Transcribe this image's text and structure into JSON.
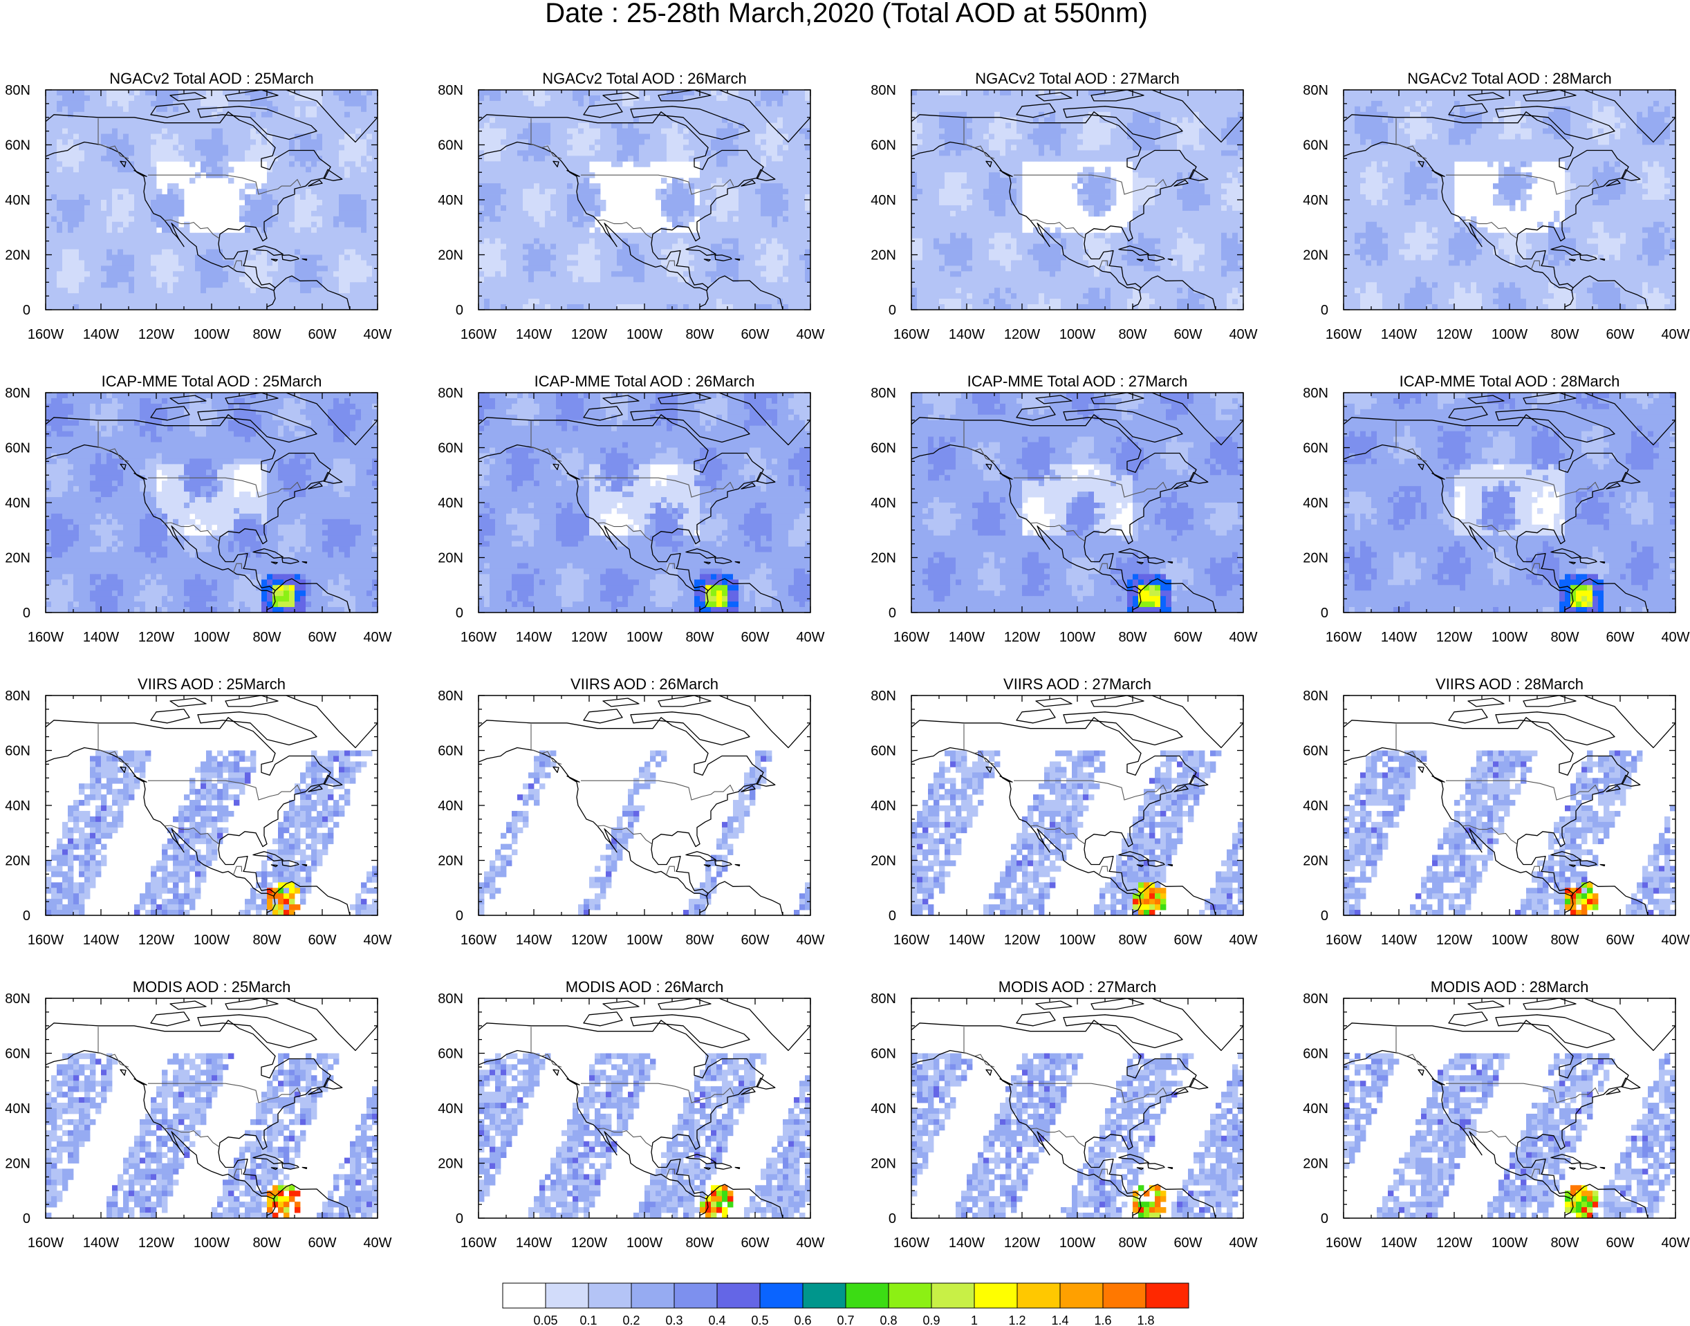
{
  "figure": {
    "title": "Date : 25-28th March,2020 (Total AOD at 550nm)"
  },
  "axes": {
    "lat_ticks": [
      "80N",
      "60N",
      "40N",
      "20N",
      "0"
    ],
    "lon_ticks": [
      "160W",
      "140W",
      "120W",
      "100W",
      "80W",
      "60W",
      "40W"
    ]
  },
  "panels": [
    {
      "row": 0,
      "col": 0,
      "title": "NGACv2 Total AOD : 25March",
      "style": "model",
      "base_level": 2,
      "hotspot": 0
    },
    {
      "row": 0,
      "col": 1,
      "title": "NGACv2 Total AOD : 26March",
      "style": "model",
      "base_level": 2,
      "hotspot": 0
    },
    {
      "row": 0,
      "col": 2,
      "title": "NGACv2 Total AOD : 27March",
      "style": "model",
      "base_level": 2,
      "hotspot": 0
    },
    {
      "row": 0,
      "col": 3,
      "title": "NGACv2 Total AOD : 28March",
      "style": "model",
      "base_level": 2,
      "hotspot": 0
    },
    {
      "row": 1,
      "col": 0,
      "title": "ICAP-MME Total AOD : 25March",
      "style": "model",
      "base_level": 3,
      "hotspot": 2
    },
    {
      "row": 1,
      "col": 1,
      "title": "ICAP-MME Total AOD : 26March",
      "style": "model",
      "base_level": 3,
      "hotspot": 2
    },
    {
      "row": 1,
      "col": 2,
      "title": "ICAP-MME Total AOD : 27March",
      "style": "model",
      "base_level": 3,
      "hotspot": 2
    },
    {
      "row": 1,
      "col": 3,
      "title": "ICAP-MME Total AOD : 28March",
      "style": "model",
      "base_level": 3,
      "hotspot": 1
    },
    {
      "row": 2,
      "col": 0,
      "title": "VIIRS AOD : 25March",
      "style": "satellite",
      "coverage": 0.55,
      "hotspot": 2
    },
    {
      "row": 2,
      "col": 1,
      "title": "VIIRS AOD : 26March",
      "style": "satellite",
      "coverage": 0.08,
      "hotspot": 0
    },
    {
      "row": 2,
      "col": 2,
      "title": "VIIRS AOD : 27March",
      "style": "satellite",
      "coverage": 0.55,
      "hotspot": 2
    },
    {
      "row": 2,
      "col": 3,
      "title": "VIIRS AOD : 28March",
      "style": "satellite",
      "coverage": 0.55,
      "hotspot": 2
    },
    {
      "row": 3,
      "col": 0,
      "title": "MODIS AOD : 25March",
      "style": "satellite",
      "coverage": 0.6,
      "hotspot": 2
    },
    {
      "row": 3,
      "col": 1,
      "title": "MODIS AOD : 26March",
      "style": "satellite",
      "coverage": 0.6,
      "hotspot": 2
    },
    {
      "row": 3,
      "col": 2,
      "title": "MODIS AOD : 27March",
      "style": "satellite",
      "coverage": 0.6,
      "hotspot": 2
    },
    {
      "row": 3,
      "col": 3,
      "title": "MODIS AOD : 28March",
      "style": "satellite",
      "coverage": 0.6,
      "hotspot": 2
    }
  ],
  "colorbar": {
    "labels": [
      "0.05",
      "0.1",
      "0.2",
      "0.3",
      "0.4",
      "0.5",
      "0.6",
      "0.7",
      "0.8",
      "0.9",
      "1",
      "1.2",
      "1.4",
      "1.6",
      "1.8"
    ],
    "colors": [
      "#ffffff",
      "#d2dcfa",
      "#b4c4f6",
      "#96abf2",
      "#7d90ee",
      "#6466e6",
      "#0a64ff",
      "#00968c",
      "#3cdc14",
      "#8cf014",
      "#c8f046",
      "#ffff00",
      "#ffc800",
      "#ffa000",
      "#ff7800",
      "#ff2800"
    ]
  }
}
